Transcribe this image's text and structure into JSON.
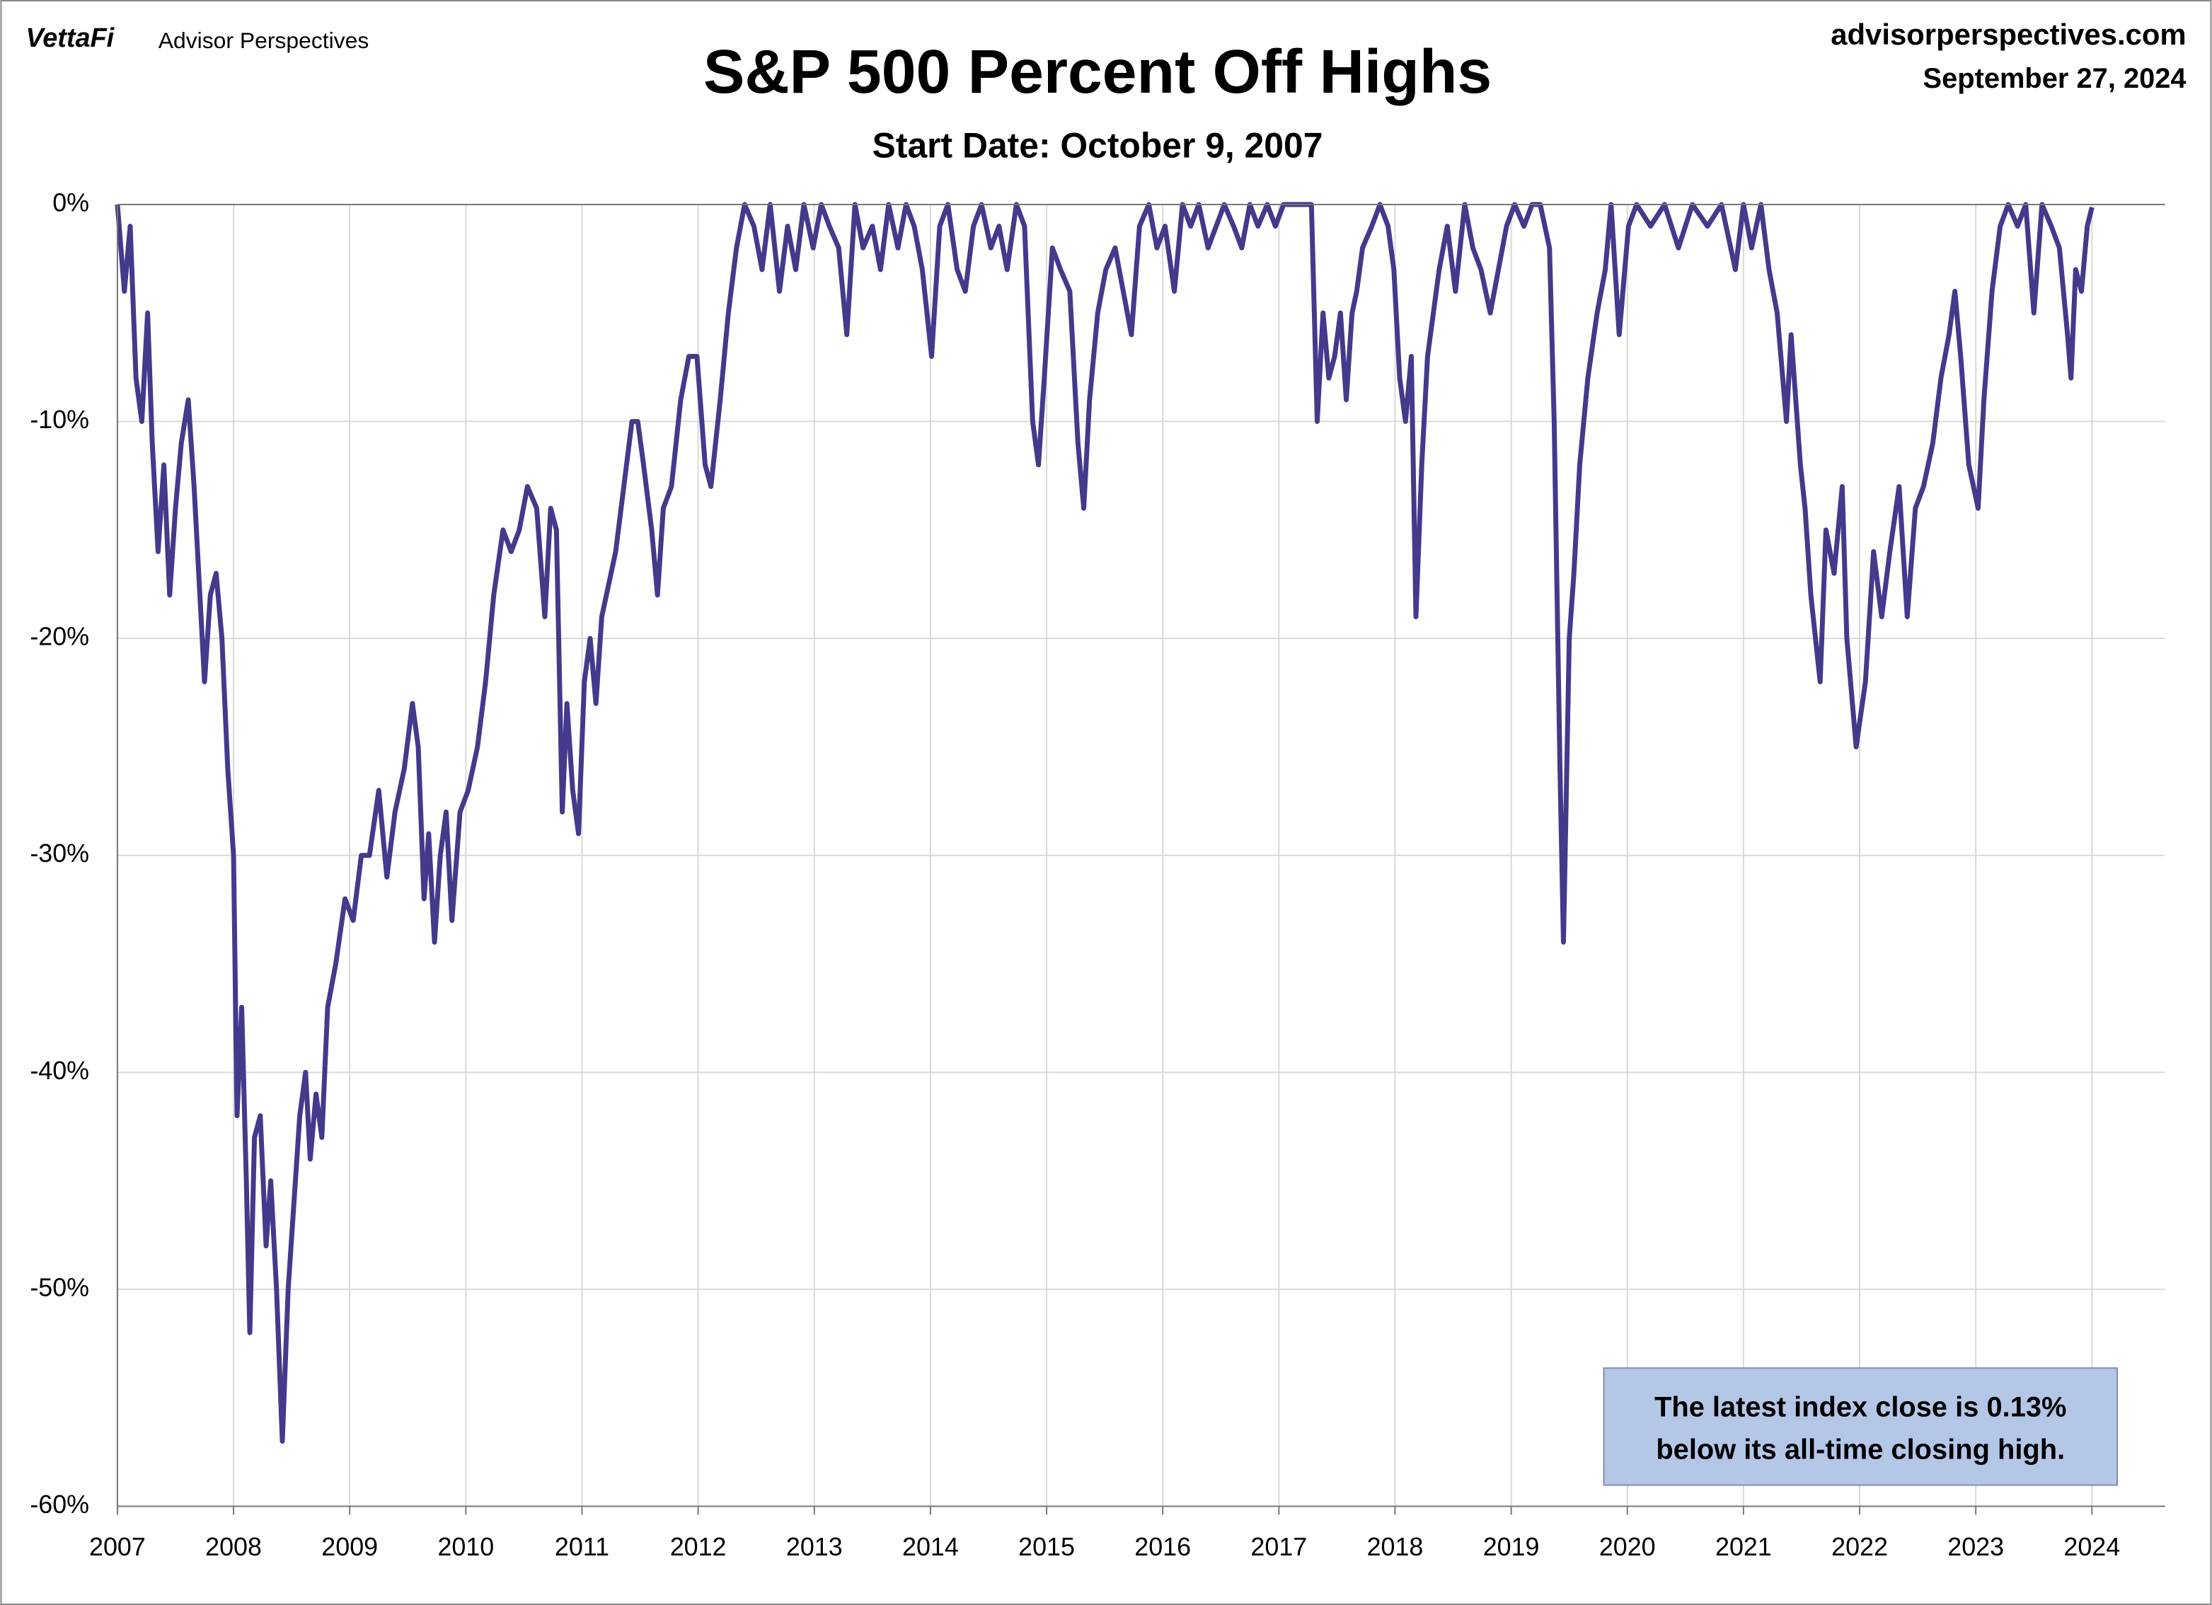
{
  "brand": "VettaFi",
  "publisher": "Advisor Perspectives",
  "site": "advisorperspectives.com",
  "date": "September 27, 2024",
  "chart_data": {
    "type": "line",
    "title": "S&P 500 Percent Off Highs",
    "subtitle": "Start Date: October 9, 2007",
    "annotation": [
      "The latest index close is 0.13%",
      "below its all-time closing high."
    ],
    "color": "#433a8c",
    "grid": true,
    "xlim": [
      2007,
      2024.63
    ],
    "xticks": [
      2007,
      2008,
      2009,
      2010,
      2011,
      2012,
      2013,
      2014,
      2015,
      2016,
      2017,
      2018,
      2019,
      2020,
      2021,
      2022,
      2023,
      2024
    ],
    "ylim": [
      -60,
      0
    ],
    "yticks": [
      {
        "value": 0,
        "label": "0%"
      },
      {
        "value": -10,
        "label": "-10%"
      },
      {
        "value": -20,
        "label": "-20%"
      },
      {
        "value": -30,
        "label": "-30%"
      },
      {
        "value": -40,
        "label": "-40%"
      },
      {
        "value": -50,
        "label": "-50%"
      },
      {
        "value": -60,
        "label": "-60%"
      }
    ],
    "x": [
      2007.0,
      2007.06,
      2007.11,
      2007.16,
      2007.21,
      2007.26,
      2007.3,
      2007.35,
      2007.4,
      2007.45,
      2007.5,
      2007.55,
      2007.61,
      2007.66,
      2007.7,
      2007.75,
      2007.8,
      2007.85,
      2007.9,
      2007.95,
      2008.0,
      2008.03,
      2008.07,
      2008.11,
      2008.14,
      2008.18,
      2008.23,
      2008.28,
      2008.32,
      2008.37,
      2008.42,
      2008.47,
      2008.52,
      2008.57,
      2008.62,
      2008.66,
      2008.71,
      2008.76,
      2008.81,
      2008.88,
      2008.96,
      2009.03,
      2009.1,
      2009.17,
      2009.25,
      2009.32,
      2009.39,
      2009.47,
      2009.54,
      2009.59,
      2009.64,
      2009.68,
      2009.73,
      2009.78,
      2009.83,
      2009.88,
      2009.95,
      2010.02,
      2010.1,
      2010.17,
      2010.24,
      2010.32,
      2010.39,
      2010.46,
      2010.53,
      2010.61,
      2010.68,
      2010.73,
      2010.78,
      2010.83,
      2010.87,
      2010.92,
      2010.97,
      2011.02,
      2011.07,
      2011.12,
      2011.17,
      2011.21,
      2011.29,
      2011.36,
      2011.43,
      2011.48,
      2011.53,
      2011.6,
      2011.65,
      2011.7,
      2011.77,
      2011.85,
      2011.92,
      2011.99,
      2012.06,
      2012.11,
      2012.19,
      2012.26,
      2012.33,
      2012.4,
      2012.48,
      2012.55,
      2012.62,
      2012.7,
      2012.77,
      2012.84,
      2012.91,
      2012.99,
      2013.06,
      2013.13,
      2013.21,
      2013.28,
      2013.35,
      2013.42,
      2013.5,
      2013.57,
      2013.64,
      2013.72,
      2013.79,
      2013.86,
      2013.93,
      2014.01,
      2014.08,
      2014.15,
      2014.23,
      2014.3,
      2014.37,
      2014.44,
      2014.52,
      2014.59,
      2014.66,
      2014.74,
      2014.81,
      2014.88,
      2014.93,
      2014.98,
      2015.05,
      2015.12,
      2015.2,
      2015.27,
      2015.32,
      2015.37,
      2015.44,
      2015.51,
      2015.59,
      2015.66,
      2015.73,
      2015.8,
      2015.88,
      2015.95,
      2016.02,
      2016.1,
      2016.17,
      2016.24,
      2016.31,
      2016.39,
      2016.46,
      2016.53,
      2016.61,
      2016.68,
      2016.75,
      2016.82,
      2016.9,
      2016.97,
      2017.04,
      2017.16,
      2017.28,
      2017.33,
      2017.38,
      2017.43,
      2017.48,
      2017.53,
      2017.58,
      2017.63,
      2017.67,
      2017.72,
      2017.8,
      2017.87,
      2017.94,
      2017.99,
      2018.04,
      2018.09,
      2018.14,
      2018.18,
      2018.23,
      2018.28,
      2018.33,
      2018.38,
      2018.45,
      2018.52,
      2018.6,
      2018.67,
      2018.74,
      2018.82,
      2018.89,
      2018.96,
      2019.03,
      2019.11,
      2019.18,
      2019.25,
      2019.33,
      2019.37,
      2019.42,
      2019.45,
      2019.5,
      2019.54,
      2019.59,
      2019.66,
      2019.74,
      2019.81,
      2019.86,
      2019.93,
      2020.01,
      2020.08,
      2020.2,
      2020.32,
      2020.44,
      2020.56,
      2020.69,
      2020.81,
      2020.93,
      2021.0,
      2021.07,
      2021.15,
      2021.22,
      2021.29,
      2021.37,
      2021.41,
      2021.49,
      2021.53,
      2021.58,
      2021.66,
      2021.71,
      2021.78,
      2021.85,
      2021.89,
      2021.97,
      2022.05,
      2022.12,
      2022.19,
      2022.26,
      2022.34,
      2022.41,
      2022.48,
      2022.55,
      2022.63,
      2022.7,
      2022.77,
      2022.82,
      2022.87,
      2022.94,
      2023.02,
      2023.07,
      2023.14,
      2023.21,
      2023.28,
      2023.36,
      2023.43,
      2023.5,
      2023.57,
      2023.65,
      2023.72,
      2023.79,
      2023.82,
      2023.86,
      2023.91,
      2023.96,
      2024.0
    ],
    "values": [
      0,
      -4,
      -1,
      -8,
      -10,
      -5,
      -11,
      -16,
      -12,
      -18,
      -14,
      -11,
      -9,
      -13,
      -17,
      -22,
      -18,
      -17,
      -20,
      -26,
      -30,
      -42,
      -37,
      -45,
      -52,
      -43,
      -42,
      -48,
      -45,
      -50,
      -57,
      -50,
      -46,
      -42,
      -40,
      -44,
      -41,
      -43,
      -37,
      -35,
      -32,
      -33,
      -30,
      -30,
      -27,
      -31,
      -28,
      -26,
      -23,
      -25,
      -32,
      -29,
      -34,
      -30,
      -28,
      -33,
      -28,
      -27,
      -25,
      -22,
      -18,
      -15,
      -16,
      -15,
      -13,
      -14,
      -19,
      -14,
      -15,
      -28,
      -23,
      -27,
      -29,
      -22,
      -20,
      -23,
      -19,
      -18,
      -16,
      -13,
      -10,
      -10,
      -12,
      -15,
      -18,
      -14,
      -13,
      -9,
      -7,
      -7,
      -12,
      -13,
      -9,
      -5,
      -2,
      0,
      -1,
      -3,
      0,
      -4,
      -1,
      -3,
      0,
      -2,
      0,
      -1,
      -2,
      -6,
      0,
      -2,
      -1,
      -3,
      0,
      -2,
      0,
      -1,
      -3,
      -7,
      -1,
      0,
      -3,
      -4,
      -1,
      0,
      -2,
      -1,
      -3,
      0,
      -1,
      -10,
      -12,
      -8,
      -2,
      -3,
      -4,
      -11,
      -14,
      -9,
      -5,
      -3,
      -2,
      -4,
      -6,
      -1,
      0,
      -2,
      -1,
      -4,
      0,
      -1,
      0,
      -2,
      -1,
      0,
      -1,
      -2,
      0,
      -1,
      0,
      -1,
      0,
      0,
      0,
      -10,
      -5,
      -8,
      -7,
      -5,
      -9,
      -5,
      -4,
      -2,
      -1,
      0,
      -1,
      -3,
      -8,
      -10,
      -7,
      -19,
      -12,
      -7,
      -5,
      -3,
      -1,
      -4,
      0,
      -2,
      -3,
      -5,
      -3,
      -1,
      0,
      -1,
      0,
      0,
      -2,
      -10,
      -26,
      -34,
      -20,
      -17,
      -12,
      -8,
      -5,
      -3,
      0,
      -6,
      -1,
      0,
      -1,
      0,
      -2,
      0,
      -1,
      0,
      -3,
      0,
      -2,
      0,
      -3,
      -5,
      -10,
      -6,
      -12,
      -14,
      -18,
      -22,
      -15,
      -17,
      -13,
      -20,
      -25,
      -22,
      -16,
      -19,
      -16,
      -13,
      -19,
      -14,
      -13,
      -11,
      -8,
      -6,
      -4,
      -7,
      -12,
      -14,
      -9,
      -4,
      -1,
      0,
      -1,
      0,
      -5,
      0,
      -1,
      -2,
      -6,
      -8,
      -3,
      -4,
      -1,
      -0.13
    ]
  }
}
